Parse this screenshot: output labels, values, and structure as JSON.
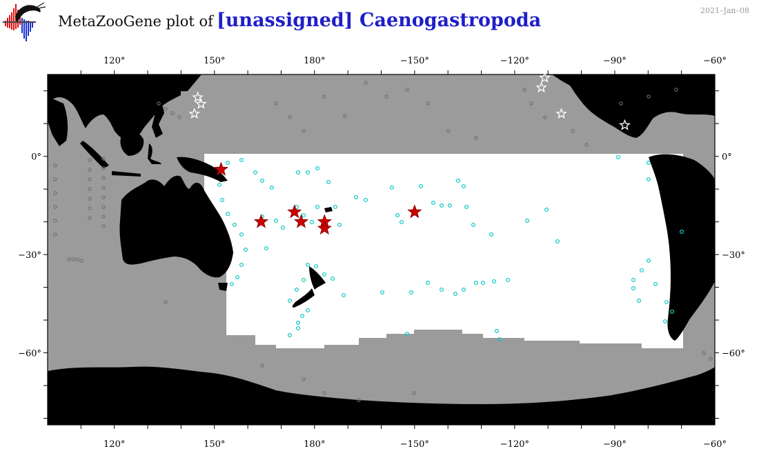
{
  "header": {
    "title_prefix": "MetaZooGene plot of",
    "title_taxon": "[unassigned] Caenogastropoda",
    "date": "2021–Jan–08"
  },
  "map": {
    "projection": "equirectangular",
    "lon_range": [
      100,
      300
    ],
    "lat_range": [
      -82,
      25
    ],
    "lon_ticks": [
      "120°",
      "150°",
      "180°",
      "−150°",
      "−120°",
      "−90°",
      "−60°"
    ],
    "lat_ticks": [
      "0°",
      "−30°",
      "−60°"
    ],
    "colors": {
      "land": "#000000",
      "ocean_background": "#9b9b9b",
      "study_region": "#ffffff",
      "sample_background": "#6e6e6e",
      "sample_region": "#19c9c9",
      "taxon_record_region": "#cc0000",
      "taxon_record_other": "#ffffff"
    },
    "taxon_records_region": [
      {
        "lon": 152,
        "lat": -4
      },
      {
        "lon": 164,
        "lat": -20
      },
      {
        "lon": 174,
        "lat": -17
      },
      {
        "lon": 176,
        "lat": -20
      },
      {
        "lon": 183,
        "lat": -20
      },
      {
        "lon": 183,
        "lat": -22
      },
      {
        "lon": 210,
        "lat": -17
      }
    ],
    "taxon_records_other": [
      {
        "lon": 145,
        "lat": 18
      },
      {
        "lon": 146,
        "lat": 16
      },
      {
        "lon": 144,
        "lat": 13
      },
      {
        "lon": 249,
        "lat": 24
      },
      {
        "lon": 248,
        "lat": 21
      },
      {
        "lon": 254,
        "lat": 13
      },
      {
        "lon": 273,
        "lat": 9.5
      }
    ]
  }
}
